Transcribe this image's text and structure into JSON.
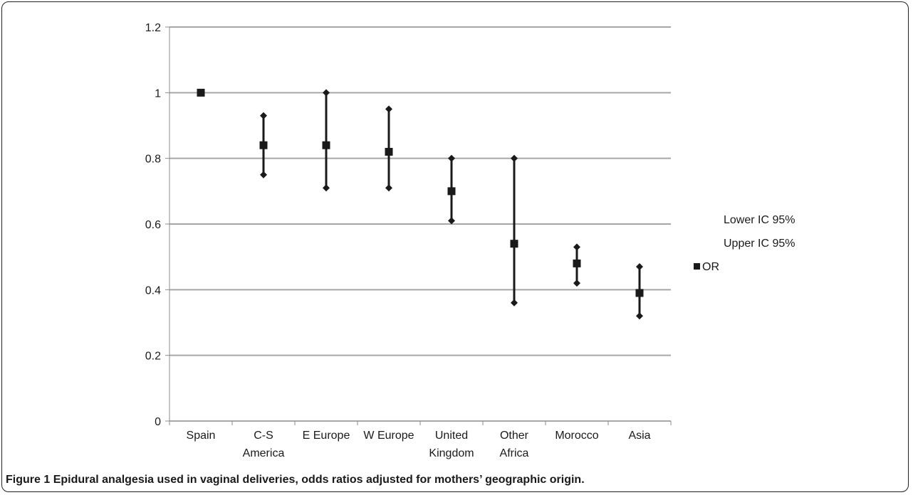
{
  "caption": {
    "label": "Figure 1",
    "text": "Epidural analgesia used in vaginal deliveries, odds ratios adjusted for mothers’ geographic origin."
  },
  "chart_data": {
    "type": "scatter",
    "subtype": "high-low-close (odds ratio with 95% confidence interval)",
    "title": "",
    "xlabel": "",
    "ylabel": "",
    "ylim": [
      0,
      1.2
    ],
    "y_ticks": [
      "0",
      "0.2",
      "0.4",
      "0.6",
      "0.8",
      "1",
      "1.2"
    ],
    "grid": "horizontal",
    "legend_position": "right",
    "categories": [
      [
        "Spain"
      ],
      [
        "C-S",
        "America"
      ],
      [
        "E Europe"
      ],
      [
        "W Europe"
      ],
      [
        "United",
        "Kingdom"
      ],
      [
        "Other",
        "Africa"
      ],
      [
        "Morocco"
      ],
      [
        "Asia"
      ]
    ],
    "series": [
      {
        "name": "Lower IC 95%",
        "marker": "diamond",
        "values": [
          null,
          0.75,
          0.71,
          0.71,
          0.61,
          0.36,
          0.42,
          0.32
        ]
      },
      {
        "name": "Upper IC 95%",
        "marker": "diamond",
        "values": [
          null,
          0.93,
          1.0,
          0.95,
          0.8,
          0.8,
          0.53,
          0.47
        ]
      },
      {
        "name": "OR",
        "marker": "square",
        "values": [
          1.0,
          0.84,
          0.84,
          0.82,
          0.7,
          0.54,
          0.48,
          0.39
        ]
      }
    ],
    "colors": {
      "marker": "#1a1a1a",
      "grid": "#a6a6a6",
      "axis": "#8c8c8c"
    }
  }
}
